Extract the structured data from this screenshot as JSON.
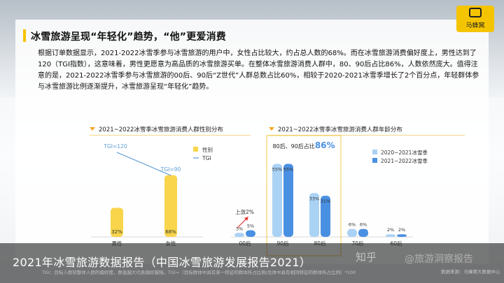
{
  "header": {
    "title": "冰雪旅游呈现“年轻化”趋势，“他”更爱消费",
    "body": "根据订单数据显示，2021-2022冰雪季参与冰雪旅游的用户中，女性占比较大，约占总人数的68%。而在冰雪旅游消费偏好度上，男性达到了120（TGI指数），这意味着，男性更愿意为高品质的冰雪旅游买单。在整体冰雪旅游消费人群中，80、90后占比86%，人数依然庞大。值得注意的是，2021-2022冰雪季参与冰雪旅游的00后、90后“Z世代”人群总数占比60%，相较于2020-2021冰雪季增长了2个百分点，年轻群体参与冰雪旅游比例逐渐提升，冰雪旅游呈现“年轻化”趋势。"
  },
  "logo": {
    "text": "马蜂窝",
    "icon": "mafengwo-logo-icon"
  },
  "banner": {
    "text": "2021年冰雪旅游数据报告（中国冰雪旅游发展报告2021）",
    "watermark_site": "知乎",
    "watermark_name": "@旅游洞察报告",
    "footnote": "TGI：目标人群较整体人群的偏好度，数值越大代表偏好越强。TGI=（目标群体中具有某一特征的群体所占比例/总体中具有相同特征的群体所占比例）*100",
    "source": "数据来源：马蜂窝大数据中心"
  },
  "colors": {
    "accent": "#f5c400",
    "bar_yellow": "#f8d54a",
    "tgi_line": "#5b9bd5",
    "series_2020": "#a9d2f5",
    "series_2021": "#4a90e2",
    "arrow": "#e53935"
  },
  "chart_data": [
    {
      "type": "bar",
      "title": "2021~2022冰雪季冰雪旅游消费人群性别分布",
      "categories": [
        "男性",
        "女性"
      ],
      "series": [
        {
          "name": "性别",
          "values": [
            32,
            68
          ],
          "value_labels": [
            "32%",
            "68%"
          ]
        }
      ],
      "lines": [
        {
          "name": "TGI",
          "values": [
            120,
            90
          ],
          "value_labels": [
            "TGI=120",
            "TGI=90"
          ]
        }
      ],
      "legend": [
        "性别",
        "TGI"
      ]
    },
    {
      "type": "bar",
      "title": "2021~2022冰雪季冰雪旅游消费人群年龄分布",
      "categories": [
        "00后",
        "90后",
        "80后",
        "70后",
        "60后"
      ],
      "series": [
        {
          "name": "2020~2021冰雪季",
          "values": [
            3,
            55,
            33,
            6,
            2
          ],
          "value_labels": [
            "3%",
            "55%",
            "33%",
            "6%",
            "2%"
          ]
        },
        {
          "name": "2021~2022冰雪季",
          "values": [
            5,
            55,
            31,
            6,
            2
          ],
          "value_labels": [
            "5%",
            "55%",
            "31%",
            "6%",
            "2%"
          ]
        }
      ],
      "annotations": {
        "highlight_prefix": "80后、90后占比",
        "highlight_value": "86%",
        "rise_label": "上涨2%"
      }
    }
  ]
}
